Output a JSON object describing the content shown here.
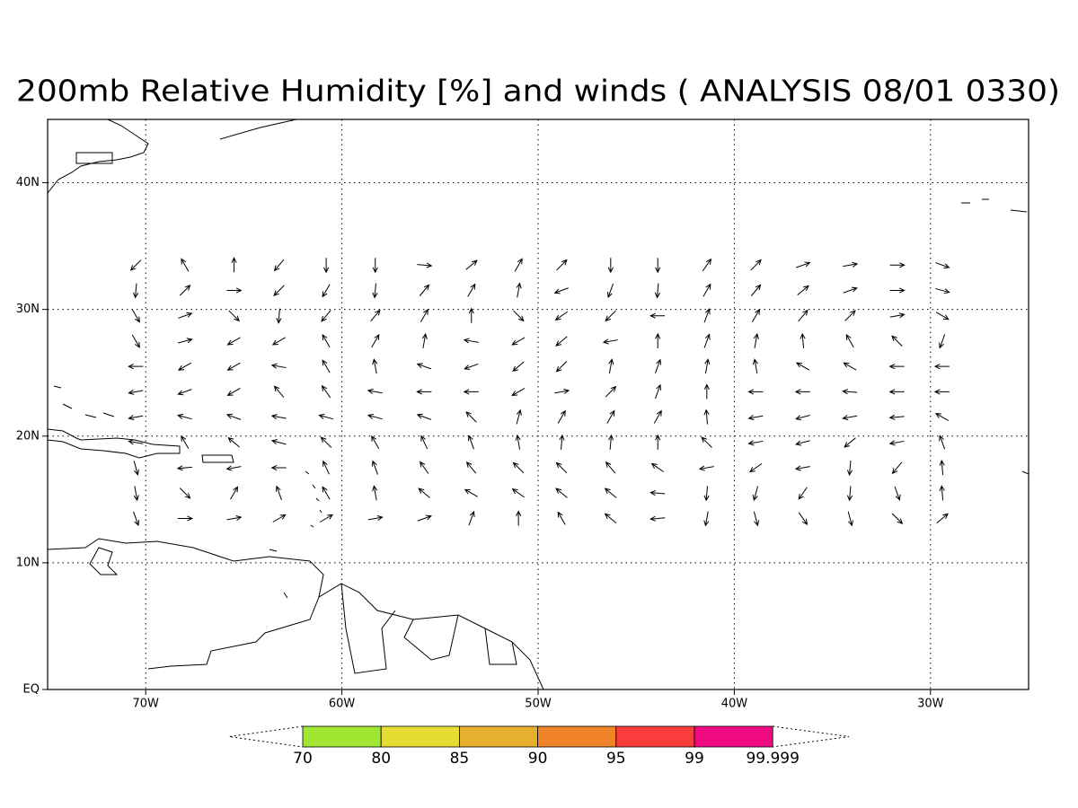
{
  "title": "200mb Relative Humidity [%] and winds ( ANALYSIS 08/01 0330)",
  "map": {
    "xlim": [
      -75,
      -25
    ],
    "ylim": [
      0,
      45
    ],
    "xticks": [
      {
        "value": -70,
        "label": "70W"
      },
      {
        "value": -60,
        "label": "60W"
      },
      {
        "value": -50,
        "label": "50W"
      },
      {
        "value": -40,
        "label": "40W"
      },
      {
        "value": -30,
        "label": "30W"
      }
    ],
    "yticks": [
      {
        "value": 0,
        "label": "EQ"
      },
      {
        "value": 10,
        "label": "10N"
      },
      {
        "value": 20,
        "label": "20N"
      },
      {
        "value": 30,
        "label": "30N"
      },
      {
        "value": 40,
        "label": "40N"
      }
    ],
    "grid": true
  },
  "winds": {
    "lats": [
      33.5,
      31.5,
      29.5,
      27.5,
      25.5,
      23.5,
      21.5,
      19.5,
      17.5,
      15.5,
      13.5
    ],
    "lons": [
      -70.5,
      -68,
      -65.5,
      -63.2,
      -60.8,
      -58.3,
      -55.8,
      -53.4,
      -51,
      -48.8,
      -46.3,
      -43.9,
      -41.4,
      -38.9,
      -36.5,
      -34.1,
      -31.7,
      -29.4
    ],
    "dirs": [
      [
        225,
        120,
        90,
        230,
        270,
        270,
        -5,
        40,
        60,
        45,
        270,
        270,
        55,
        45,
        20,
        10,
        0,
        -20
      ],
      [
        265,
        45,
        0,
        225,
        240,
        265,
        50,
        60,
        80,
        200,
        250,
        265,
        60,
        50,
        40,
        20,
        0,
        -15
      ],
      [
        -60,
        20,
        -45,
        265,
        230,
        50,
        60,
        90,
        -45,
        215,
        225,
        180,
        70,
        60,
        50,
        45,
        10,
        -30
      ],
      [
        -60,
        15,
        210,
        210,
        120,
        60,
        80,
        170,
        210,
        220,
        190,
        90,
        70,
        80,
        95,
        120,
        135,
        250
      ],
      [
        180,
        210,
        210,
        170,
        120,
        100,
        160,
        200,
        220,
        225,
        80,
        70,
        80,
        100,
        150,
        150,
        180,
        180
      ],
      [
        190,
        200,
        210,
        130,
        125,
        170,
        180,
        180,
        210,
        10,
        45,
        70,
        90,
        180,
        180,
        175,
        180,
        180
      ],
      [
        190,
        165,
        160,
        170,
        165,
        165,
        160,
        135,
        75,
        60,
        60,
        60,
        95,
        190,
        195,
        190,
        185,
        150
      ],
      [
        170,
        120,
        140,
        165,
        135,
        120,
        115,
        110,
        100,
        85,
        85,
        90,
        135,
        190,
        195,
        220,
        190,
        110
      ],
      [
        -75,
        185,
        190,
        180,
        115,
        110,
        125,
        130,
        135,
        135,
        130,
        145,
        190,
        215,
        190,
        265,
        230,
        95
      ],
      [
        280,
        -45,
        60,
        110,
        120,
        100,
        140,
        150,
        145,
        140,
        140,
        175,
        265,
        255,
        235,
        265,
        -70,
        95
      ],
      [
        290,
        0,
        10,
        30,
        30,
        10,
        20,
        70,
        90,
        120,
        140,
        185,
        260,
        -75,
        -55,
        -75,
        -45,
        40
      ]
    ]
  },
  "colorbar": {
    "levels": [
      70,
      80,
      85,
      90,
      95,
      99,
      99.999
    ],
    "colors": [
      "#a0e632",
      "#e6dc32",
      "#e6af2d",
      "#f08228",
      "#fa3c3c",
      "#f00a82"
    ]
  }
}
